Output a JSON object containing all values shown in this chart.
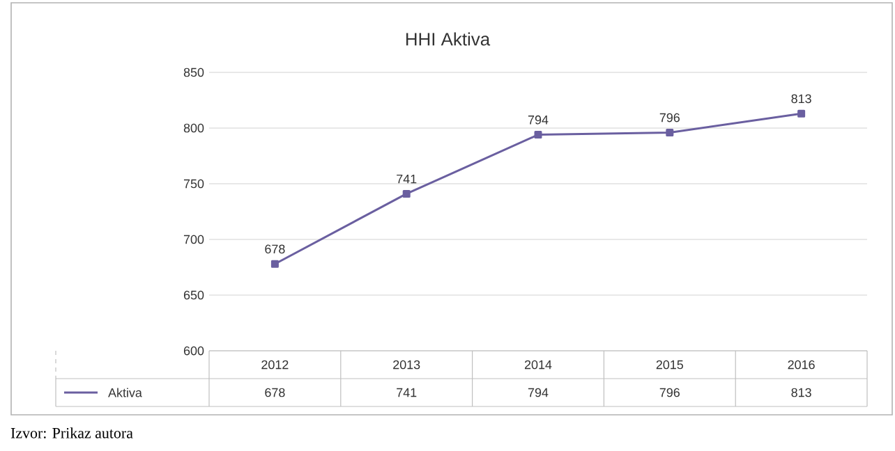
{
  "chart_data": {
    "type": "line",
    "title": "HHI Aktiva",
    "categories": [
      "2012",
      "2013",
      "2014",
      "2015",
      "2016"
    ],
    "series": [
      {
        "name": "Aktiva",
        "color": "#6a5fa0",
        "values": [
          678,
          741,
          794,
          796,
          813
        ]
      }
    ],
    "ylim": [
      600,
      850
    ],
    "yticks": [
      600,
      650,
      700,
      750,
      800,
      850
    ],
    "grid": "y",
    "marker": "square",
    "data_labels": true,
    "legend": "bottom",
    "annotations": [
      {
        "text": "678",
        "x": "2012",
        "y": 678
      },
      {
        "text": "741",
        "x": "2013",
        "y": 741
      },
      {
        "text": "794",
        "x": "2014",
        "y": 794
      },
      {
        "text": "796",
        "x": "2015",
        "y": 796
      },
      {
        "text": "813",
        "x": "2016",
        "y": 813
      },
      "Izvor: Prikaz autora"
    ]
  }
}
